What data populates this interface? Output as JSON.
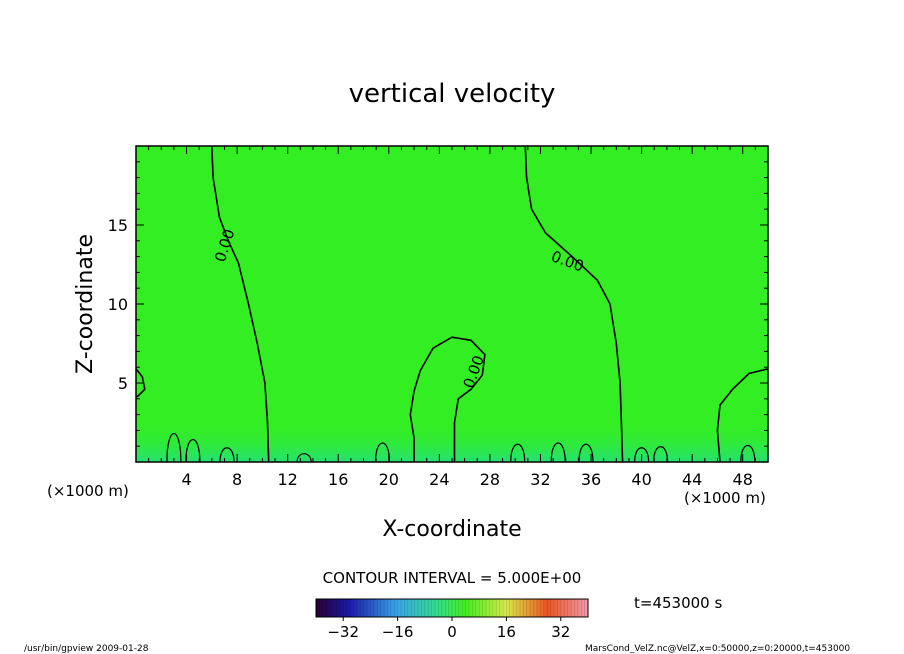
{
  "chart_data": {
    "type": "heatmap",
    "title": "vertical velocity",
    "xlabel": "X-coordinate",
    "ylabel": "Z-coordinate",
    "x_units_note": "(×1000 m)",
    "z_units_note": "(×1000 m)",
    "xlim": [
      0,
      50
    ],
    "zlim": [
      0,
      20
    ],
    "x_ticks": [
      4,
      8,
      12,
      16,
      20,
      24,
      28,
      32,
      36,
      40,
      44,
      48
    ],
    "z_ticks": [
      5,
      10,
      15
    ],
    "contour_interval_text": "CONTOUR INTERVAL = 5.000E+00",
    "contour_label": "0.00",
    "time_text": "t=453000 s",
    "colorbar": {
      "range": [
        -40,
        40
      ],
      "ticks": [
        -32,
        -16,
        0,
        16,
        32
      ]
    },
    "zero_contours": [
      {
        "name": "left",
        "points": [
          [
            6.0,
            20
          ],
          [
            6.1,
            18
          ],
          [
            6.6,
            15.5
          ],
          [
            7.3,
            14
          ],
          [
            8.1,
            12.6
          ],
          [
            8.9,
            10
          ],
          [
            9.6,
            7.5
          ],
          [
            10.2,
            5
          ],
          [
            10.4,
            2.5
          ],
          [
            10.5,
            0
          ]
        ]
      },
      {
        "name": "right",
        "points": [
          [
            30.8,
            20
          ],
          [
            30.9,
            18
          ],
          [
            31.3,
            16
          ],
          [
            32.4,
            14.5
          ],
          [
            34.5,
            13
          ],
          [
            36.5,
            11.5
          ],
          [
            37.5,
            10
          ],
          [
            38.0,
            7.5
          ],
          [
            38.3,
            5
          ],
          [
            38.4,
            2.5
          ],
          [
            38.5,
            0
          ]
        ]
      },
      {
        "name": "bump",
        "points": [
          [
            22.0,
            0
          ],
          [
            22.0,
            1.5
          ],
          [
            21.7,
            3.0
          ],
          [
            22.0,
            4.5
          ],
          [
            22.5,
            5.8
          ],
          [
            23.5,
            7.2
          ],
          [
            25.0,
            7.9
          ],
          [
            26.5,
            7.7
          ],
          [
            27.6,
            6.8
          ],
          [
            27.4,
            5.5
          ],
          [
            26.5,
            4.6
          ],
          [
            25.5,
            4.0
          ],
          [
            25.2,
            2.5
          ],
          [
            25.2,
            0
          ]
        ]
      },
      {
        "name": "left-edge",
        "points": [
          [
            0,
            5.9
          ],
          [
            0.5,
            5.4
          ],
          [
            0.7,
            4.6
          ],
          [
            0.2,
            4.2
          ],
          [
            0,
            4.1
          ]
        ]
      },
      {
        "name": "right-edge",
        "points": [
          [
            50,
            5.9
          ],
          [
            48.5,
            5.6
          ],
          [
            47.2,
            4.6
          ],
          [
            46.2,
            3.6
          ],
          [
            46.0,
            2.0
          ],
          [
            46.2,
            0
          ]
        ]
      }
    ]
  },
  "footer": {
    "left": "/usr/bin/gpview  2009-01-28",
    "right": "MarsCond_VelZ.nc@VelZ,x=0:50000,z=0:20000,t=453000"
  },
  "colors": {
    "field": "#33ee22",
    "frame": "#000000",
    "contour": "#000000"
  }
}
